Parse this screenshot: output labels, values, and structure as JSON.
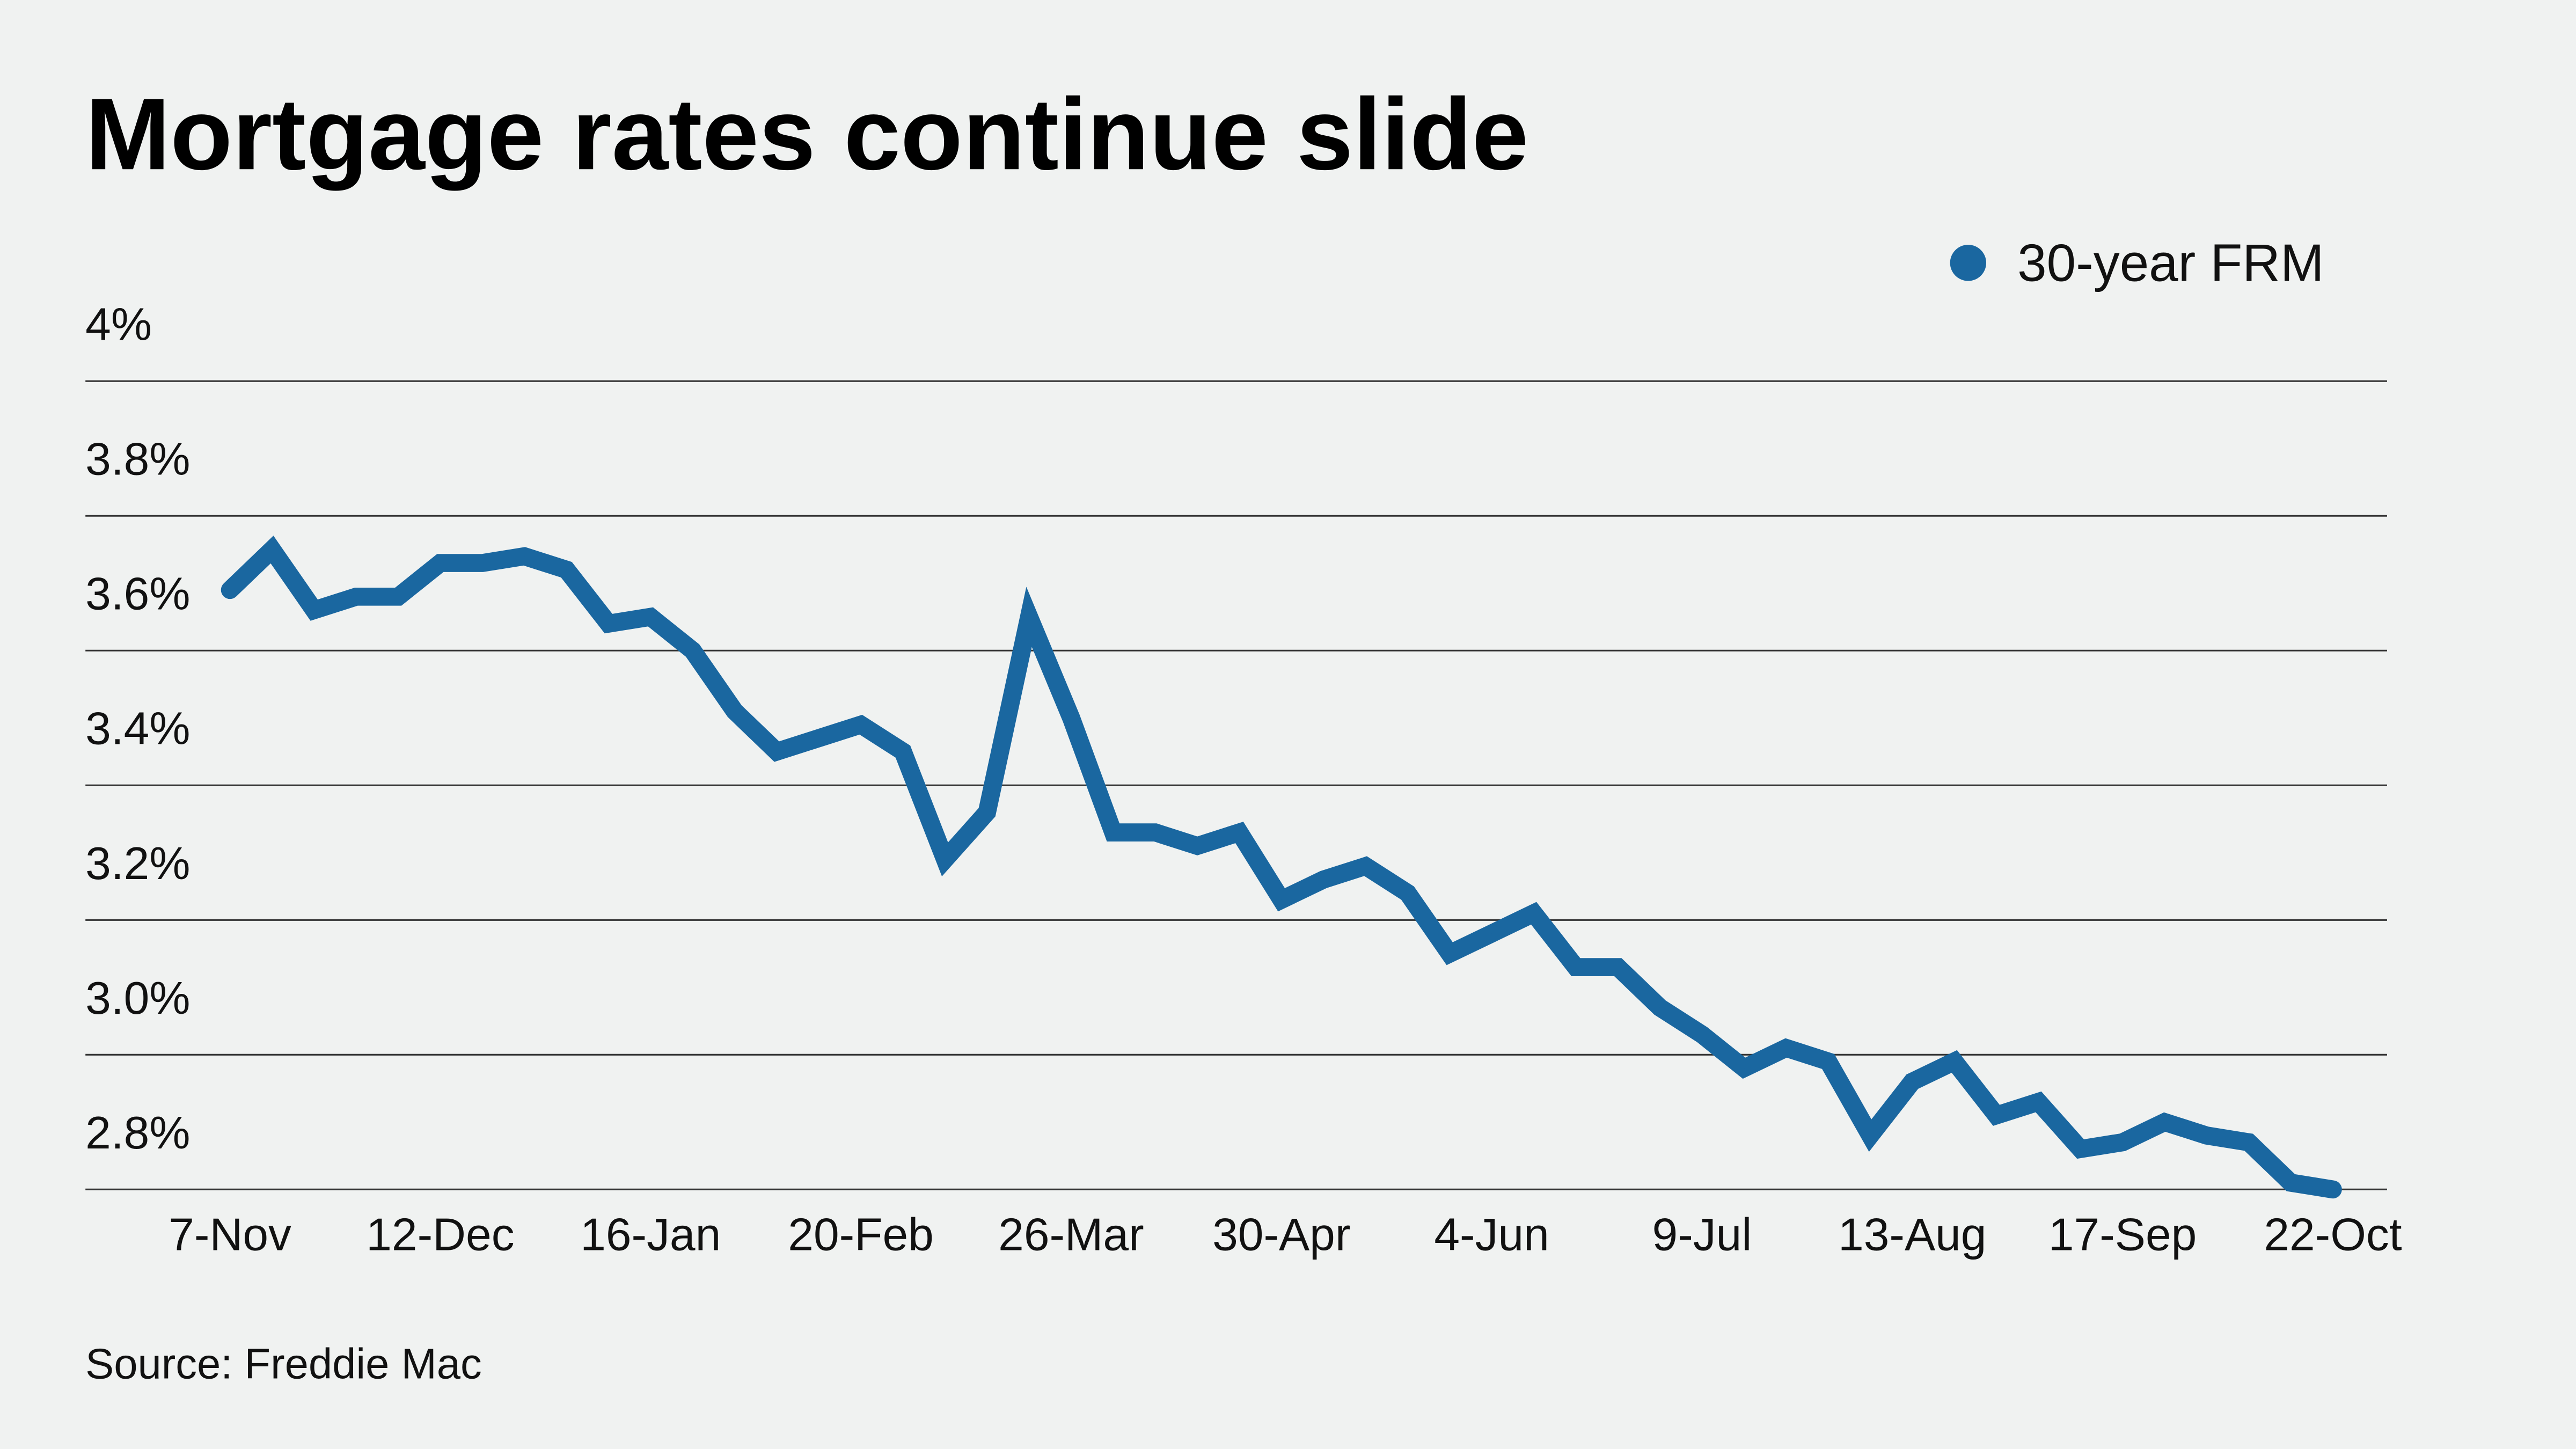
{
  "chart_data": {
    "type": "line",
    "title": "Mortgage rates continue slide",
    "source": "Source: Freddie Mac",
    "xlabel": "",
    "ylabel": "",
    "ylim": [
      2.8,
      4.0
    ],
    "y_ticks": [
      {
        "value": 4.0,
        "label": "4%"
      },
      {
        "value": 3.8,
        "label": "3.8%"
      },
      {
        "value": 3.6,
        "label": "3.6%"
      },
      {
        "value": 3.4,
        "label": "3.4%"
      },
      {
        "value": 3.2,
        "label": "3.2%"
      },
      {
        "value": 3.0,
        "label": "3.0%"
      },
      {
        "value": 2.8,
        "label": "2.8%"
      }
    ],
    "x_ticks": [
      "7-Nov",
      "12-Dec",
      "16-Jan",
      "20-Feb",
      "26-Mar",
      "30-Apr",
      "4-Jun",
      "9-Jul",
      "13-Aug",
      "17-Sep",
      "22-Oct"
    ],
    "grid": true,
    "legend_position": "top-right",
    "x": [
      "7-Nov",
      "14-Nov",
      "21-Nov",
      "27-Nov",
      "5-Dec",
      "12-Dec",
      "19-Dec",
      "26-Dec",
      "2-Jan",
      "9-Jan",
      "16-Jan",
      "23-Jan",
      "30-Jan",
      "6-Feb",
      "13-Feb",
      "20-Feb",
      "27-Feb",
      "5-Mar",
      "12-Mar",
      "19-Mar",
      "26-Mar",
      "2-Apr",
      "9-Apr",
      "16-Apr",
      "23-Apr",
      "30-Apr",
      "7-May",
      "14-May",
      "21-May",
      "28-May",
      "4-Jun",
      "11-Jun",
      "18-Jun",
      "25-Jun",
      "2-Jul",
      "9-Jul",
      "16-Jul",
      "23-Jul",
      "30-Jul",
      "6-Aug",
      "13-Aug",
      "20-Aug",
      "27-Aug",
      "3-Sep",
      "10-Sep",
      "17-Sep",
      "24-Sep",
      "1-Oct",
      "8-Oct",
      "15-Oct",
      "22-Oct"
    ],
    "series": [
      {
        "name": "30-year FRM",
        "color": "#1a67a0",
        "values": [
          3.69,
          3.75,
          3.66,
          3.68,
          3.68,
          3.73,
          3.73,
          3.74,
          3.72,
          3.64,
          3.65,
          3.6,
          3.51,
          3.45,
          3.47,
          3.49,
          3.45,
          3.29,
          3.36,
          3.65,
          3.5,
          3.33,
          3.33,
          3.31,
          3.33,
          3.23,
          3.26,
          3.28,
          3.24,
          3.15,
          3.18,
          3.21,
          3.13,
          3.13,
          3.07,
          3.03,
          2.98,
          3.01,
          2.99,
          2.88,
          2.96,
          2.99,
          2.91,
          2.93,
          2.86,
          2.87,
          2.9,
          2.88,
          2.87,
          2.81,
          2.8
        ]
      }
    ]
  },
  "colors": {
    "background": "#f0f2f1",
    "series": "#1a67a0"
  }
}
